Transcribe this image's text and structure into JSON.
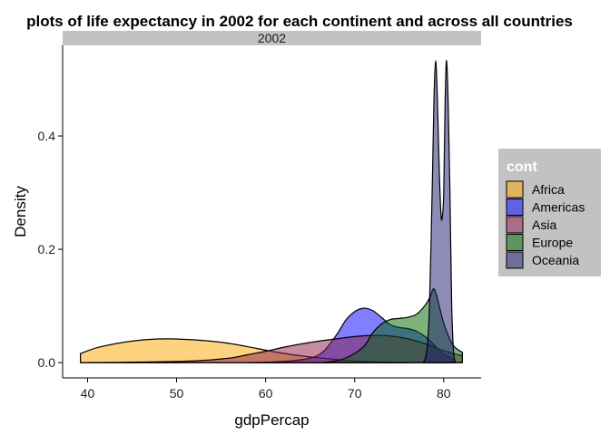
{
  "chart_data": {
    "type": "area",
    "title": "plots of life expectancy in 2002 for each continent and across all countries",
    "facet_label": "2002",
    "xlabel": "gdpPercap",
    "ylabel": "Density",
    "xlim": [
      37.2,
      84.2
    ],
    "ylim": [
      -0.027,
      0.56
    ],
    "x_ticks": [
      40,
      50,
      60,
      70,
      80
    ],
    "y_ticks": [
      0.0,
      0.2,
      0.4
    ],
    "y_tick_labels": [
      "0.0",
      "0.2",
      "0.4"
    ],
    "grid": false,
    "legend": {
      "title": "cont",
      "position": "right"
    },
    "series": [
      {
        "name": "Africa",
        "color": "#FFA500",
        "x": [
          39.2,
          41,
          43,
          45,
          47,
          49,
          51,
          53,
          55,
          57,
          59,
          61,
          63,
          65,
          67,
          69,
          71,
          73,
          75.7
        ],
        "y": [
          0.016,
          0.026,
          0.033,
          0.038,
          0.041,
          0.042,
          0.041,
          0.039,
          0.036,
          0.031,
          0.025,
          0.019,
          0.014,
          0.01,
          0.007,
          0.004,
          0.002,
          0.001,
          0.0
        ]
      },
      {
        "name": "Americas",
        "color": "#0000FF",
        "x": [
          58.0,
          62,
          65,
          66.5,
          68,
          69,
          70,
          71,
          72,
          73,
          74,
          75,
          76,
          77,
          78,
          79,
          80,
          81.2
        ],
        "y": [
          0.0,
          0.002,
          0.008,
          0.02,
          0.05,
          0.075,
          0.09,
          0.096,
          0.092,
          0.08,
          0.067,
          0.062,
          0.06,
          0.055,
          0.045,
          0.03,
          0.015,
          0.005
        ]
      },
      {
        "name": "Asia",
        "color": "#8B1A4A",
        "x": [
          39.2,
          46,
          52,
          56,
          58,
          60,
          62,
          64,
          66,
          68,
          70,
          72,
          74,
          76,
          78,
          80,
          82.1
        ],
        "y": [
          0.0,
          0.001,
          0.003,
          0.008,
          0.014,
          0.02,
          0.027,
          0.033,
          0.038,
          0.042,
          0.046,
          0.048,
          0.047,
          0.042,
          0.033,
          0.021,
          0.012
        ]
      },
      {
        "name": "Europe",
        "color": "#006400",
        "x": [
          65.5,
          67,
          69,
          71,
          72,
          73,
          74,
          75,
          76,
          77,
          78,
          78.5,
          79,
          80,
          81,
          82.1
        ],
        "y": [
          0.0,
          0.001,
          0.008,
          0.028,
          0.052,
          0.068,
          0.076,
          0.078,
          0.08,
          0.086,
          0.103,
          0.117,
          0.128,
          0.07,
          0.032,
          0.018
        ]
      },
      {
        "name": "Oceania",
        "color": "#191970",
        "x": [
          77.7,
          78.1,
          78.4,
          78.7,
          78.9,
          79.1,
          79.3,
          79.5,
          79.7,
          79.85,
          80.0,
          80.15,
          80.3,
          80.5,
          80.7,
          80.9,
          81.1,
          81.3
        ],
        "y": [
          0.0,
          0.02,
          0.1,
          0.3,
          0.46,
          0.533,
          0.46,
          0.34,
          0.26,
          0.258,
          0.3,
          0.45,
          0.533,
          0.46,
          0.3,
          0.1,
          0.02,
          0.0
        ]
      }
    ]
  }
}
